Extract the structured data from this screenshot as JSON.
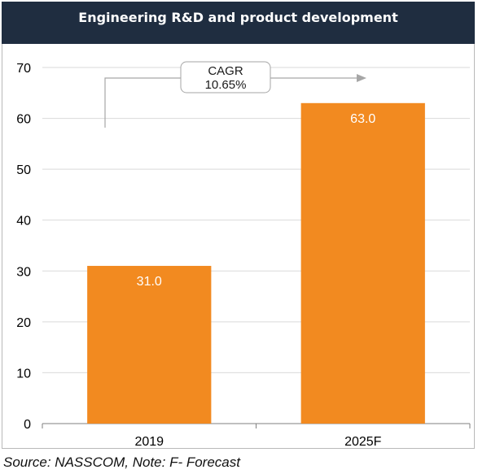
{
  "header": {
    "title": "Engineering R&D and product development"
  },
  "source": "Source: NASSCOM, Note: F- Forecast",
  "colors": {
    "header_bg": "#1f2d40",
    "bar": "#f28a20",
    "grid": "#d9d9d9",
    "axis": "#7f7f7f"
  },
  "chart_data": {
    "type": "bar",
    "categories": [
      "2019",
      "2025F"
    ],
    "values": [
      31.0,
      63.0
    ],
    "value_labels": [
      "31.0",
      "63.0"
    ],
    "title": "Engineering R&D and product development",
    "xlabel": "",
    "ylabel": "",
    "ylim": [
      0,
      70
    ],
    "yticks": [
      0,
      10,
      20,
      30,
      40,
      50,
      60,
      70
    ],
    "grid": true,
    "legend": "none",
    "annotation": {
      "line1": "CAGR",
      "line2": "10.65%"
    }
  }
}
